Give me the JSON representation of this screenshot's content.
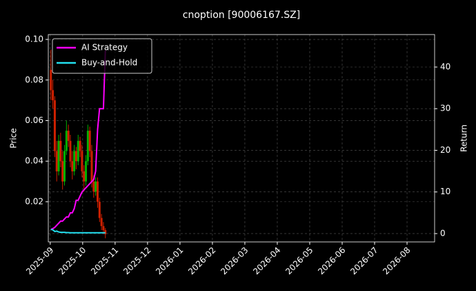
{
  "chart_data": {
    "type": "candlestick",
    "title": "cnoption [90006167.SZ]",
    "ylabel": "Price",
    "y2label": "Return",
    "x": [
      0.02,
      0.08,
      0.14,
      0.2,
      0.26,
      0.32,
      0.38,
      0.44,
      0.5,
      0.56,
      0.62,
      0.68,
      0.74,
      0.8,
      0.86,
      0.92,
      0.98,
      1.04,
      1.1,
      1.16,
      1.22,
      1.28,
      1.34,
      1.4,
      1.46,
      1.52,
      1.58,
      1.64,
      1.7
    ],
    "open": [
      0.085,
      0.075,
      0.07,
      0.045,
      0.035,
      0.05,
      0.04,
      0.03,
      0.045,
      0.055,
      0.05,
      0.04,
      0.035,
      0.045,
      0.04,
      0.05,
      0.045,
      0.035,
      0.03,
      0.04,
      0.055,
      0.045,
      0.03,
      0.025,
      0.03,
      0.02,
      0.012,
      0.008,
      0.006
    ],
    "high": [
      0.095,
      0.08,
      0.072,
      0.05,
      0.053,
      0.054,
      0.045,
      0.048,
      0.06,
      0.058,
      0.053,
      0.045,
      0.048,
      0.047,
      0.053,
      0.052,
      0.048,
      0.038,
      0.043,
      0.058,
      0.057,
      0.048,
      0.033,
      0.032,
      0.032,
      0.022,
      0.014,
      0.01,
      0.007
    ],
    "low": [
      0.07,
      0.066,
      0.042,
      0.03,
      0.033,
      0.037,
      0.026,
      0.028,
      0.043,
      0.047,
      0.037,
      0.031,
      0.033,
      0.036,
      0.038,
      0.042,
      0.032,
      0.025,
      0.028,
      0.038,
      0.042,
      0.027,
      0.022,
      0.023,
      0.017,
      0.01,
      0.006,
      0.004,
      0.002
    ],
    "close": [
      0.075,
      0.07,
      0.045,
      0.035,
      0.05,
      0.04,
      0.03,
      0.045,
      0.055,
      0.05,
      0.04,
      0.035,
      0.045,
      0.04,
      0.05,
      0.045,
      0.035,
      0.03,
      0.04,
      0.055,
      0.045,
      0.03,
      0.025,
      0.03,
      0.02,
      0.012,
      0.008,
      0.006,
      0.004
    ],
    "up_color": "#00b000",
    "down_color": "#d02000",
    "series": [
      {
        "name": "AI Strategy",
        "color": "#ff00ff",
        "axis": "y2",
        "values": [
          1,
          1.2,
          1.5,
          2,
          2.5,
          3,
          3,
          3.5,
          4,
          4,
          5,
          5,
          6,
          8,
          8,
          9,
          10,
          10.5,
          11,
          11.5,
          12,
          12.5,
          13,
          15,
          25,
          30,
          30,
          30,
          44
        ]
      },
      {
        "name": "Buy-and-Hold",
        "color": "#22e0f0",
        "axis": "y2",
        "values": [
          1,
          0.9,
          0.5,
          0.6,
          0.4,
          0.3,
          0.3,
          0.3,
          0.25,
          0.25,
          0.2,
          0.2,
          0.2,
          0.2,
          0.2,
          0.2,
          0.2,
          0.2,
          0.2,
          0.2,
          0.2,
          0.2,
          0.2,
          0.2,
          0.2,
          0.2,
          0.2,
          0.2,
          0.2
        ]
      }
    ],
    "xlim": [
      -0.06,
      11.85
    ],
    "xticks": [
      {
        "value": 0,
        "label": "2025-09"
      },
      {
        "value": 1,
        "label": "2025-10"
      },
      {
        "value": 2,
        "label": "2025-11"
      },
      {
        "value": 3,
        "label": "2025-12"
      },
      {
        "value": 4,
        "label": "2026-01"
      },
      {
        "value": 5,
        "label": "2026-02"
      },
      {
        "value": 6,
        "label": "2026-03"
      },
      {
        "value": 7,
        "label": "2026-04"
      },
      {
        "value": 8,
        "label": "2026-05"
      },
      {
        "value": 9,
        "label": "2026-06"
      },
      {
        "value": 10,
        "label": "2026-07"
      },
      {
        "value": 11,
        "label": "2026-08"
      }
    ],
    "ylim": [
      0.0002,
      0.1024
    ],
    "yticks": [
      0.02,
      0.04,
      0.06,
      0.08,
      {
        "value": 0.1,
        "label": "0.10"
      }
    ],
    "y2lim": [
      -2,
      47.8
    ],
    "y2ticks": [
      0,
      10,
      20,
      30,
      40
    ],
    "grid": true,
    "legend": "upper left"
  }
}
